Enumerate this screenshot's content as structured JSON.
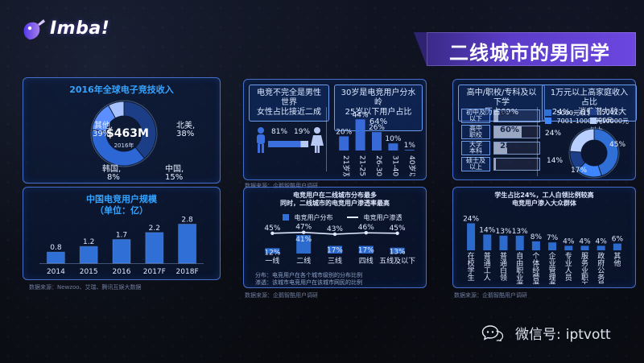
{
  "header": {
    "logo_text": "Imba!",
    "title": "二线城市的男同学"
  },
  "watermark": {
    "text": "微信号:",
    "handle": "iptvott"
  },
  "charts": {
    "global_revenue": {
      "title": "2016年全球电子竞技收入",
      "center_value": "$463M",
      "center_year": "2016年",
      "labels": [
        {
          "name": "其他,",
          "pct": "39%"
        },
        {
          "name": "北美,",
          "pct": "38%"
        },
        {
          "name": "韩国,",
          "pct": "8%"
        },
        {
          "name": "中国,",
          "pct": "15%"
        }
      ]
    },
    "china_users": {
      "title_line1": "中国电竞用户规模",
      "title_line2": "（单位：亿）",
      "source": "数据来源：Newzoo、艾瑞、腾讯互娱大数据"
    },
    "gender": {
      "title_line1": "电竞不完全是男性世界",
      "title_line2": "女性占比接近二成",
      "male_pct": "81%",
      "female_pct": "19%"
    },
    "age": {
      "title_line1": "30岁是电竞用户分水岭",
      "title_line2": "25岁以下用户占比64%",
      "source": "数据来源：企鹅智酷用户调研"
    },
    "city": {
      "title_line1": "电竞用户在二线城市分布最多",
      "title_line2": "同时，二线城市的电竞用户渗透率最高",
      "legend_bar": "电竞用户分布",
      "legend_line": "电竞用户渗透",
      "note_line1": "分布：电竞用户在各个城市级别的分布比例",
      "note_line2": "渗透：该城市电竞用户在该城市网民的比例",
      "source": "数据来源：企鹅智酷用户调研"
    },
    "education": {
      "title_line1": "高中/职校/专科及以下学",
      "title_line2": "历占69%",
      "rows": [
        {
          "label_1": "初中及",
          "label_2": "以下",
          "value": "9%",
          "fraction": 0.09
        },
        {
          "label_1": "高中",
          "label_2": "职校",
          "value": "60%",
          "fraction": 0.6
        },
        {
          "label_1": "大学",
          "label_2": "本科",
          "value": "28%",
          "fraction": 0.28
        },
        {
          "label_1": "硕士及",
          "label_2": "以上",
          "value": "3%",
          "fraction": 0.03
        }
      ]
    },
    "income": {
      "title_line1": "1万元以上高家庭收入占比",
      "title_line2": "24%，消费潜力较大",
      "legend": [
        {
          "label": "5000元以下",
          "color": "#2f6fd6"
        },
        {
          "label": "5001-7000元",
          "color": "#1d3f8a"
        },
        {
          "label": "7001-10000元",
          "color": "#3e86ff"
        },
        {
          "label": "10000元以上",
          "color": "#b9cfff"
        }
      ],
      "pcts": [
        {
          "name": "5000元以下",
          "pct": "45%"
        },
        {
          "name": "7001-10000元",
          "pct": "17%"
        },
        {
          "name": "5001-7000元",
          "pct": "14%"
        },
        {
          "name": "10000元以上",
          "pct": "24%"
        }
      ]
    },
    "occupation": {
      "title_line1": "学生占比24%，工人白领比例较高",
      "title_line2": "电竞用户渗入大众群体",
      "source": "数据来源：企鹅智酷用户调研"
    }
  },
  "chart_data": [
    {
      "type": "pie",
      "title": "2016年全球电子竞技收入",
      "labels": [
        "其他",
        "北美",
        "中国",
        "韩国"
      ],
      "values": [
        39,
        38,
        15,
        8
      ],
      "center_text": "$463M 2016年"
    },
    {
      "type": "bar",
      "title": "中国电竞用户规模（单位：亿）",
      "categories": [
        "2014",
        "2015",
        "2016",
        "2017F",
        "2018F"
      ],
      "values": [
        0.8,
        1.2,
        1.7,
        2.2,
        2.8
      ],
      "ylim": [
        0,
        3.0
      ]
    },
    {
      "type": "bar",
      "title": "30岁是电竞用户分水岭 25岁以下用户占比64%",
      "categories": [
        "21岁及以下",
        "21-25岁",
        "26-30岁",
        "31-40岁",
        "40岁以上"
      ],
      "values": [
        20,
        44,
        26,
        10,
        1
      ],
      "ylim": [
        0,
        50
      ]
    },
    {
      "type": "bar",
      "title": "电竞用户在二线城市分布最多 同时，二线城市的电竞用户渗透率最高",
      "categories": [
        "一线",
        "二线",
        "三线",
        "四线",
        "五线及以下"
      ],
      "series": [
        {
          "name": "电竞用户分布",
          "values": [
            12,
            41,
            17,
            17,
            13
          ]
        },
        {
          "name": "电竞用户渗透",
          "values": [
            45,
            47,
            43,
            46,
            45
          ]
        }
      ],
      "ylim": [
        0,
        50
      ]
    },
    {
      "type": "bar",
      "title": "高中/职校/专科及以下学历占69%",
      "categories": [
        "初中及以下",
        "高中职校",
        "大学本科",
        "硕士及以上"
      ],
      "values": [
        9,
        60,
        28,
        3
      ],
      "ylim": [
        0,
        100
      ]
    },
    {
      "type": "pie",
      "title": "1万元以上高家庭收入占比24%，消费潜力较大",
      "labels": [
        "5000元以下",
        "7001-10000元",
        "5001-7000元",
        "10000元以上"
      ],
      "values": [
        45,
        17,
        14,
        24
      ]
    },
    {
      "type": "bar",
      "title": "学生占比24%，工人白领比例较高 电竞用户渗入大众群体",
      "categories": [
        "在校学生",
        "普通工人",
        "普通白领",
        "自由职业者",
        "个体经营者",
        "企业管理者",
        "专业人员",
        "服务业职工",
        "政府公务员",
        "其他"
      ],
      "values": [
        24,
        14,
        13,
        13,
        8,
        7,
        4,
        4,
        4,
        6
      ],
      "ylim": [
        0,
        30
      ]
    }
  ]
}
